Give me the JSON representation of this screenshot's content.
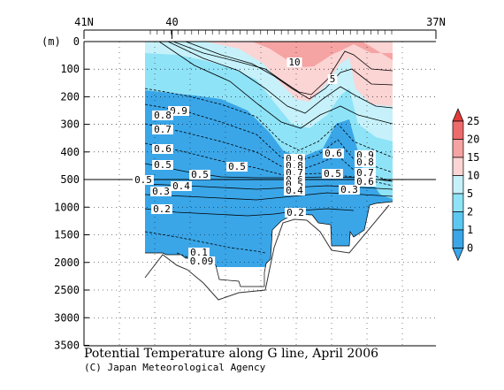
{
  "chart_data": {
    "type": "heatmap",
    "title": "Potential Temperature along G line, April 2006",
    "credit": "(C) Japan Meteorological Agency",
    "ylabel": "(m)",
    "x_axis": {
      "direction": "latitude, north to south",
      "range": [
        41,
        37
      ],
      "tick_labels": [
        {
          "lat": 41,
          "label": "41N"
        },
        {
          "lat": 40,
          "label": "40"
        },
        {
          "lat": 37,
          "label": "37N"
        }
      ]
    },
    "y_axis": {
      "range": [
        0,
        3500
      ],
      "inverted": true,
      "scale_break_at": 500,
      "upper_ticks": [
        0,
        100,
        200,
        300,
        400,
        500
      ],
      "lower_ticks": [
        1000,
        1500,
        2000,
        2500,
        3000,
        3500
      ]
    },
    "colorbar": {
      "levels": [
        "0",
        "1",
        "2",
        "5",
        "10",
        "15",
        "20",
        "25"
      ],
      "colors": [
        "#3aa6e8",
        "#5cc8f2",
        "#8fe3f7",
        "#c6f1fa",
        "#fbd4d4",
        "#f5a3a3",
        "#ee6b6b",
        "#e23b3b"
      ]
    },
    "contour_labels": [
      "10",
      "5",
      "0.9",
      "0.8",
      "0.7",
      "0.6",
      "0.5",
      "0.4",
      "0.3",
      "0.2",
      "0.1",
      "0.09"
    ],
    "data_region": {
      "lat_range": [
        40.3,
        37.3
      ],
      "max_depth_m": 2600
    }
  }
}
